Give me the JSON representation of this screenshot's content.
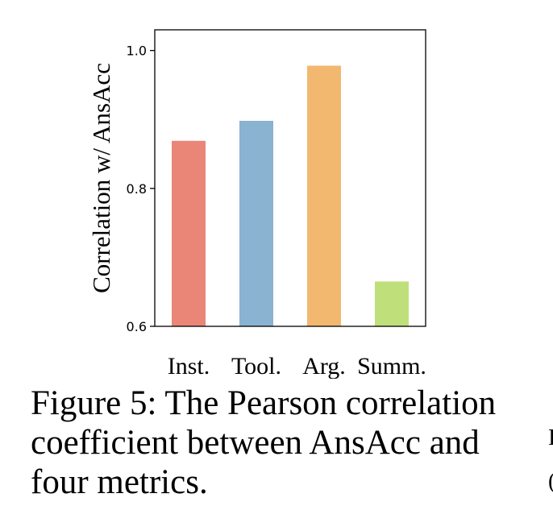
{
  "chart_data": {
    "type": "bar",
    "categories": [
      "Inst.",
      "Tool.",
      "Arg.",
      "Summ."
    ],
    "values": [
      0.869,
      0.898,
      0.978,
      0.665
    ],
    "colors": [
      "#e98677",
      "#8ab2d1",
      "#f2b870",
      "#bfdf7a"
    ],
    "ylabel": "Correlation w/ AnsAcc",
    "ylim": [
      0.6,
      1.03
    ],
    "yticks": [
      0.6,
      0.8,
      1.0
    ],
    "ytick_labels": [
      "0.6",
      "0.8",
      "1.0"
    ],
    "grid": false
  },
  "caption": "Figure 5: The Pearson correlation coefficient between AnsAcc and four metrics.",
  "edge_glyphs": [
    "I",
    "("
  ]
}
